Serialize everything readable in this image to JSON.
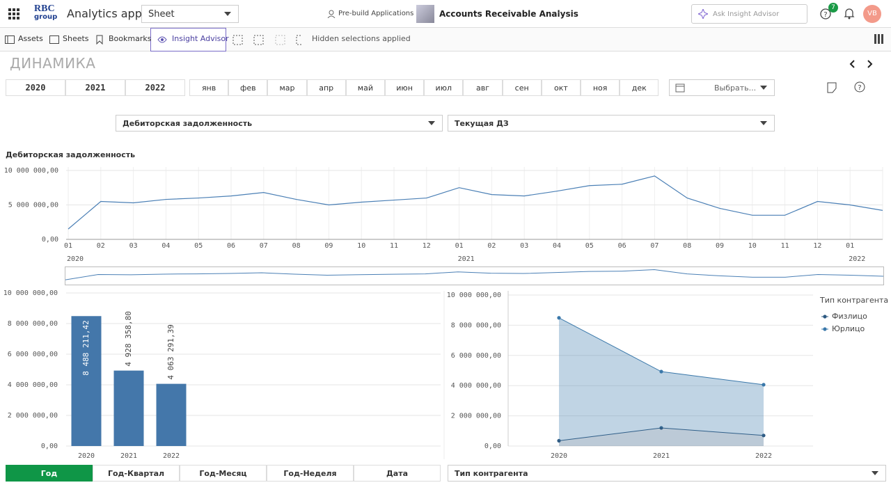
{
  "header": {
    "logo_top": "RBC",
    "logo_bottom": "group",
    "app_name": "Analytics app",
    "sheet_select": "Sheet",
    "prebuild": "Pre-build Applications",
    "app_title": "Accounts Receivable Analysis",
    "search_placeholder": "Ask Insight Advisor",
    "notification_count": 7,
    "avatar": "VB"
  },
  "toolbar": {
    "items": [
      "Assets",
      "Sheets",
      "Bookmarks",
      "Insight Advisor"
    ],
    "hidden_selections": "Hidden selections applied"
  },
  "sheet_title": "ДИНАМИКА",
  "year_filter": [
    "2020",
    "2021",
    "2022"
  ],
  "month_filter": [
    "янв",
    "фев",
    "мар",
    "апр",
    "май",
    "июн",
    "июл",
    "авг",
    "сен",
    "окт",
    "ноя",
    "дек"
  ],
  "date_picker": "Выбрать...",
  "dropdowns": [
    "Дебиторская задолженность",
    "Текущая ДЗ"
  ],
  "chart_data": [
    {
      "type": "line",
      "title": "Дебиторская задолженность",
      "color": "#4a7fb5",
      "categories": [
        "01",
        "02",
        "03",
        "04",
        "05",
        "06",
        "07",
        "08",
        "09",
        "10",
        "11",
        "12",
        "01",
        "02",
        "03",
        "04",
        "05",
        "06",
        "07",
        "08",
        "09",
        "10",
        "11",
        "12",
        "01",
        null
      ],
      "year_labels": [
        "2020",
        "2021",
        "2022"
      ],
      "values": [
        1500000,
        5500000,
        5300000,
        5800000,
        6000000,
        6300000,
        6800000,
        5800000,
        5000000,
        5400000,
        5700000,
        6000000,
        7500000,
        6500000,
        6300000,
        7000000,
        7800000,
        8000000,
        9200000,
        6000000,
        4500000,
        3500000,
        3500000,
        5500000,
        5000000,
        4200000
      ],
      "ylim": [
        0,
        10500000
      ],
      "yticks": [
        {
          "value": 0,
          "label": "0,00"
        },
        {
          "value": 5000000,
          "label": "5 000 000,00"
        },
        {
          "value": 10000000,
          "label": "10 000 000,00"
        }
      ],
      "grid": true
    },
    {
      "type": "bar",
      "color": "#4477aa",
      "categories": [
        "2020",
        "2021",
        "2022"
      ],
      "values": [
        8488211.42,
        4928358.8,
        4063291.39
      ],
      "value_labels": [
        "8 488 211,42",
        "4 928 358,80",
        "4 063 291,39"
      ],
      "ylim": [
        0,
        10000000
      ],
      "yticks": [
        {
          "value": 0,
          "label": "0,00"
        },
        {
          "value": 2000000,
          "label": "2 000 000,00"
        },
        {
          "value": 4000000,
          "label": "4 000 000,00"
        },
        {
          "value": 6000000,
          "label": "6 000 000,00"
        },
        {
          "value": 8000000,
          "label": "8 000 000,00"
        },
        {
          "value": 10000000,
          "label": "10 000 000,00"
        }
      ],
      "grid": true
    },
    {
      "type": "area",
      "stacked": true,
      "legend_title": "Тип контрагента",
      "categories": [
        "2020",
        "2021",
        "2022"
      ],
      "series": [
        {
          "name": "Физлицо",
          "color": "#2e5a82",
          "values": [
            350000,
            1200000,
            700000
          ]
        },
        {
          "name": "Юрлицо",
          "color": "#3a78aa",
          "values": [
            8140000,
            3730000,
            3360000
          ]
        }
      ],
      "ylim": [
        0,
        10000000
      ],
      "yticks": [
        {
          "value": 0,
          "label": "0,00"
        },
        {
          "value": 2000000,
          "label": "2 000 000,00"
        },
        {
          "value": 4000000,
          "label": "4 000 000,00"
        },
        {
          "value": 6000000,
          "label": "6 000 000,00"
        },
        {
          "value": 8000000,
          "label": "8 000 000,00"
        },
        {
          "value": 10000000,
          "label": "10 000 000,00"
        }
      ],
      "grid": true
    }
  ],
  "granularity_buttons": [
    "Год",
    "Год-Квартал",
    "Год-Месяц",
    "Год-Неделя",
    "Дата"
  ],
  "bottom_dropdown": "Тип контрагента"
}
